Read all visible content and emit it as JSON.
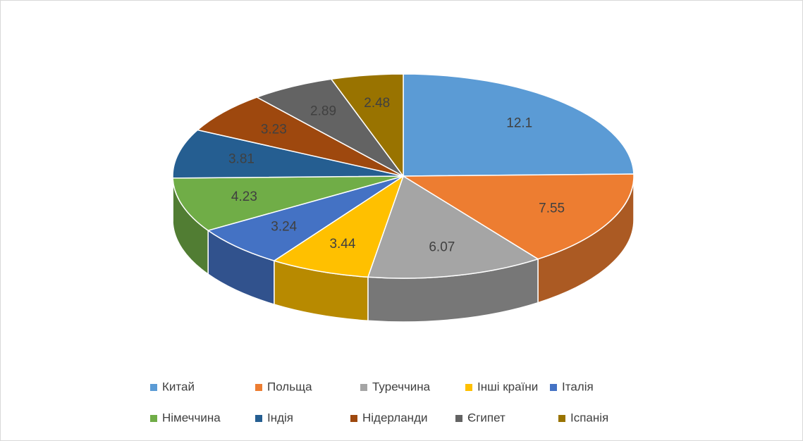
{
  "chart_data": {
    "type": "pie3d",
    "categories": [
      "Китай",
      "Польща",
      "Туреччина",
      "Інші країни",
      "Італія",
      "Німеччина",
      "Індія",
      "Нідерланди",
      "Єгипет",
      "Іспанія"
    ],
    "values": [
      12.1,
      7.55,
      6.07,
      3.44,
      3.24,
      4.23,
      3.81,
      3.23,
      2.89,
      2.48
    ],
    "colors": [
      "#5b9bd5",
      "#ed7d31",
      "#a5a5a5",
      "#ffc000",
      "#4472c4",
      "#70ad47",
      "#255e91",
      "#9e480e",
      "#636363",
      "#997300"
    ],
    "legend": "bottom"
  }
}
